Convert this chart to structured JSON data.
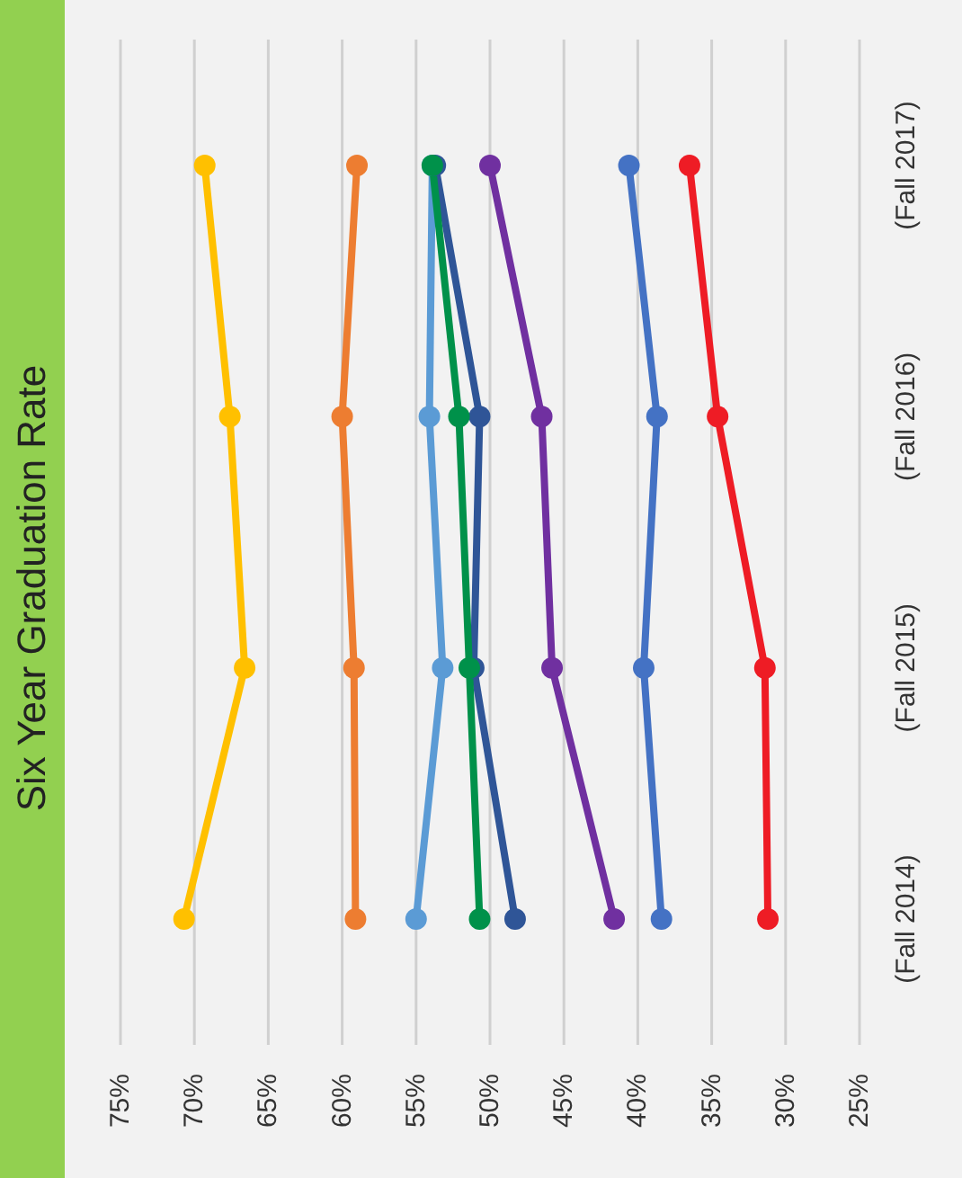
{
  "chart_data": {
    "type": "line",
    "title": "Six Year Graduation Rate",
    "orientation": "horizontal",
    "categories": [
      "(Fall 2017)",
      "(Fall 2016)",
      "(Fall 2015)",
      "(Fall 2014)"
    ],
    "series": [
      {
        "color": "#ffc000",
        "values": [
          69.3,
          67.6,
          66.6,
          70.7
        ]
      },
      {
        "color": "#ed7d31",
        "values": [
          59.0,
          60.0,
          59.2,
          59.1
        ]
      },
      {
        "color": "#5b9bd5",
        "values": [
          53.9,
          54.1,
          53.2,
          55.0
        ]
      },
      {
        "color": "#2f5597",
        "values": [
          53.7,
          50.7,
          51.1,
          48.3
        ]
      },
      {
        "color": "#00914a",
        "values": [
          53.9,
          52.1,
          51.4,
          50.7
        ]
      },
      {
        "color": "#7030a0",
        "values": [
          50.0,
          46.5,
          45.8,
          41.6
        ]
      },
      {
        "color": "#4472c4",
        "values": [
          40.6,
          38.7,
          39.6,
          38.4
        ]
      },
      {
        "color": "#ee1c25",
        "values": [
          36.5,
          34.6,
          31.4,
          31.2
        ]
      }
    ],
    "xlim": [
      75,
      25
    ],
    "xticks": [
      {
        "value": 75,
        "label": "75%"
      },
      {
        "value": 70,
        "label": "70%"
      },
      {
        "value": 65,
        "label": "65%"
      },
      {
        "value": 60,
        "label": "60%"
      },
      {
        "value": 55,
        "label": "55%"
      },
      {
        "value": 50,
        "label": "50%"
      },
      {
        "value": 45,
        "label": "45%"
      },
      {
        "value": 40,
        "label": "40%"
      },
      {
        "value": 35,
        "label": "35%"
      },
      {
        "value": 30,
        "label": "30%"
      },
      {
        "value": 25,
        "label": "25%"
      }
    ],
    "grid": "x",
    "marker": "circle",
    "line_style": "solid",
    "legend": false
  }
}
